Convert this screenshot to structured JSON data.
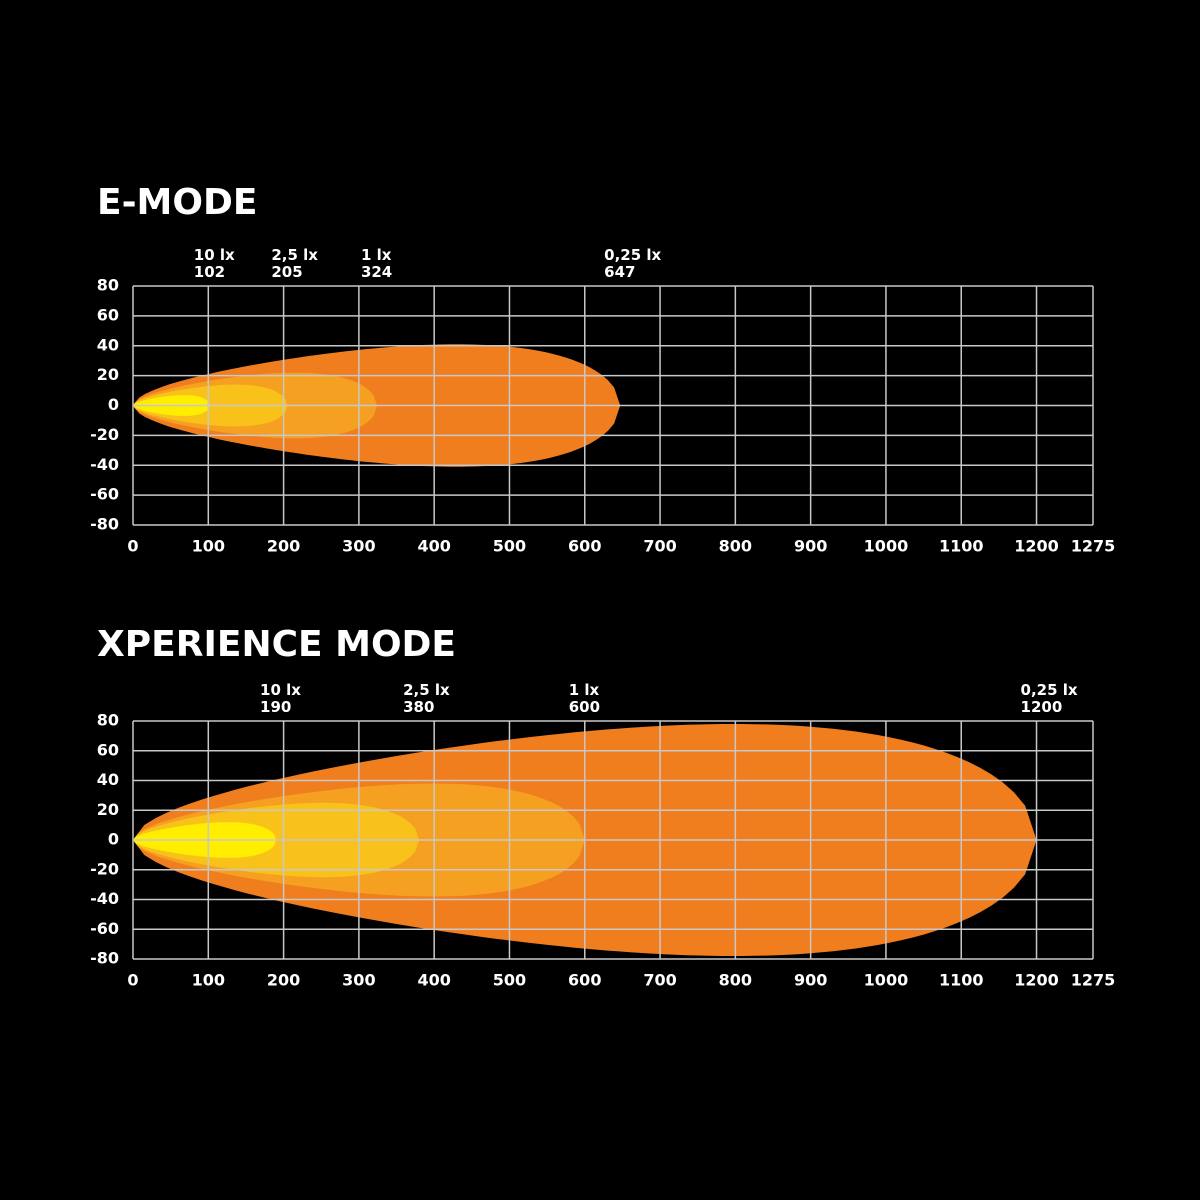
{
  "chart_data": [
    {
      "type": "beam",
      "title": "E-MODE",
      "xlim": [
        0,
        1275
      ],
      "ylim": [
        -80,
        80
      ],
      "xticks": [
        0,
        100,
        200,
        300,
        400,
        500,
        600,
        700,
        800,
        900,
        1000,
        1100,
        1200,
        1275
      ],
      "yticks": [
        80,
        60,
        40,
        20,
        0,
        -20,
        -40,
        -60,
        -80
      ],
      "grid": true,
      "series": [
        {
          "name": "0,25 lx",
          "color": "#f07d1e",
          "reach": 647,
          "half_width": 41
        },
        {
          "name": "1 lx",
          "color": "#f5a020",
          "reach": 324,
          "half_width": 22
        },
        {
          "name": "2,5 lx",
          "color": "#f9c21b",
          "reach": 205,
          "half_width": 14
        },
        {
          "name": "10 lx",
          "color": "#ffee00",
          "reach": 102,
          "half_width": 7
        }
      ]
    },
    {
      "type": "beam",
      "title": "XPERIENCE MODE",
      "xlim": [
        0,
        1275
      ],
      "ylim": [
        -80,
        80
      ],
      "xticks": [
        0,
        100,
        200,
        300,
        400,
        500,
        600,
        700,
        800,
        900,
        1000,
        1100,
        1200,
        1275
      ],
      "yticks": [
        80,
        60,
        40,
        20,
        0,
        -20,
        -40,
        -60,
        -80
      ],
      "grid": true,
      "series": [
        {
          "name": "0,25 lx",
          "color": "#f07d1e",
          "reach": 1200,
          "half_width": 78
        },
        {
          "name": "1 lx",
          "color": "#f5a020",
          "reach": 600,
          "half_width": 38
        },
        {
          "name": "2,5 lx",
          "color": "#f9c21b",
          "reach": 380,
          "half_width": 25
        },
        {
          "name": "10 lx",
          "color": "#ffee00",
          "reach": 190,
          "half_width": 12
        }
      ]
    }
  ]
}
